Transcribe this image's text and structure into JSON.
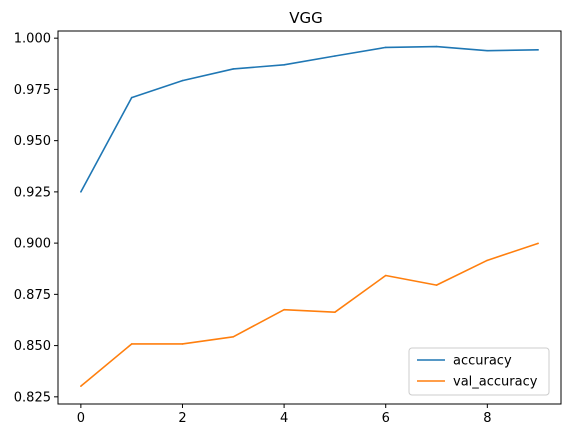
{
  "chart_data": {
    "type": "line",
    "title": "VGG",
    "xlabel": "",
    "ylabel": "",
    "xlim": [
      -0.45,
      9.45
    ],
    "ylim": [
      0.8215,
      1.0035
    ],
    "x_ticks": [
      "0",
      "2",
      "4",
      "6",
      "8"
    ],
    "y_ticks": [
      "0.825",
      "0.850",
      "0.875",
      "0.900",
      "0.925",
      "0.950",
      "0.975",
      "1.000"
    ],
    "x": [
      0,
      1,
      2,
      3,
      4,
      5,
      6,
      7,
      8,
      9
    ],
    "series": [
      {
        "name": "accuracy",
        "color": "#1f77b4",
        "values": [
          0.925,
          0.971,
          0.9793,
          0.985,
          0.987,
          0.9913,
          0.9955,
          0.9959,
          0.9939,
          0.9943
        ]
      },
      {
        "name": "val_accuracy",
        "color": "#ff7f0e",
        "values": [
          0.8302,
          0.8508,
          0.8508,
          0.8543,
          0.8675,
          0.8663,
          0.8842,
          0.8795,
          0.8916,
          0.8999
        ]
      }
    ],
    "grid": false,
    "legend_position": "lower-right"
  }
}
